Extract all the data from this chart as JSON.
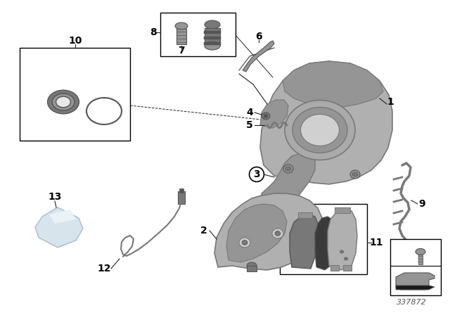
{
  "bg_color": "#ffffff",
  "part_number": "337872",
  "label_fontsize": 10,
  "bold_labels": true,
  "lc": "#222222",
  "gray1": "#b0b0b0",
  "gray2": "#959595",
  "gray3": "#787878",
  "gray4": "#555555",
  "gray5": "#cccccc",
  "gray6": "#aaaaaa"
}
